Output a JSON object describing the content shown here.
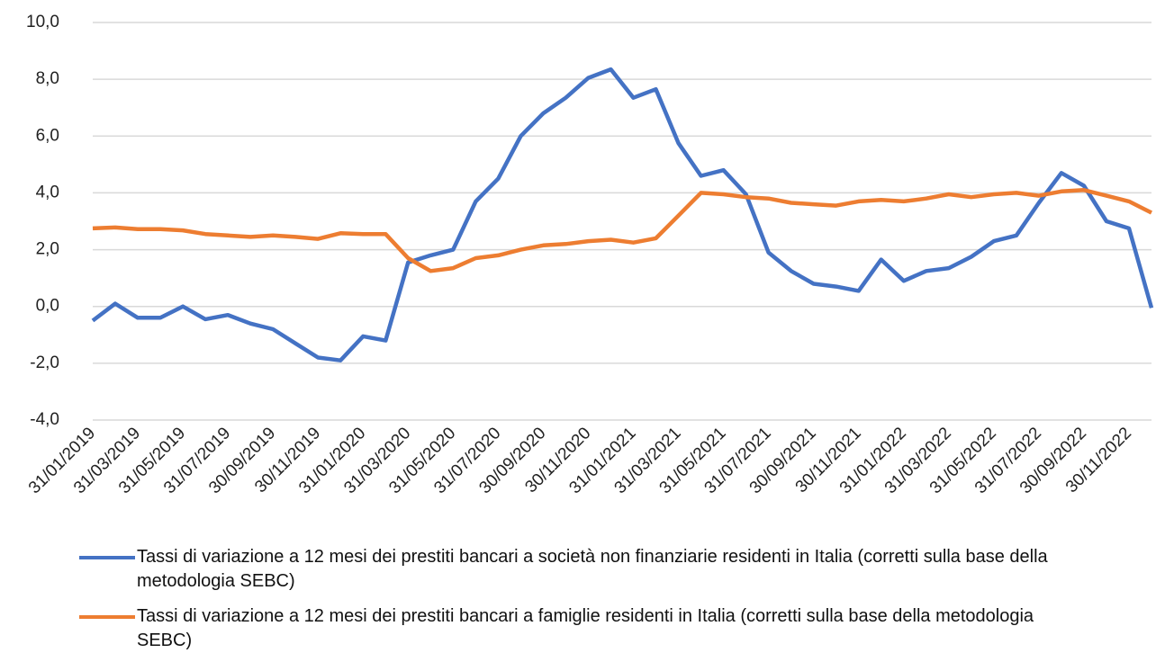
{
  "chart_data": {
    "type": "line",
    "categories": [
      "31/01/2019",
      null,
      "31/03/2019",
      null,
      "31/05/2019",
      null,
      "31/07/2019",
      null,
      "30/09/2019",
      null,
      "30/11/2019",
      null,
      "31/01/2020",
      null,
      "31/03/2020",
      null,
      "31/05/2020",
      null,
      "31/07/2020",
      null,
      "30/09/2020",
      null,
      "30/11/2020",
      null,
      "31/01/2021",
      null,
      "31/03/2021",
      null,
      "31/05/2021",
      null,
      "31/07/2021",
      null,
      "30/09/2021",
      null,
      "30/11/2021",
      null,
      "31/01/2022",
      null,
      "31/03/2022",
      null,
      "31/05/2022",
      null,
      "31/07/2022",
      null,
      "30/09/2022",
      null,
      "30/11/2022",
      null
    ],
    "series": [
      {
        "name": "Tassi di variazione a 12 mesi dei prestiti bancari a società non finanziarie residenti in Italia (corretti sulla base della metodologia SEBC)",
        "color": "#4472c4",
        "values": [
          -0.5,
          0.1,
          -0.4,
          -0.4,
          0.0,
          -0.45,
          -0.3,
          -0.6,
          -0.8,
          -1.3,
          -1.8,
          -1.9,
          -1.05,
          -1.2,
          1.55,
          1.8,
          2.0,
          3.7,
          4.5,
          6.0,
          6.8,
          7.35,
          8.05,
          8.35,
          7.35,
          7.65,
          5.75,
          4.6,
          4.8,
          3.95,
          1.9,
          1.25,
          0.8,
          0.7,
          0.55,
          1.65,
          0.9,
          1.25,
          1.35,
          1.75,
          2.3,
          2.5,
          3.65,
          4.7,
          4.25,
          3.0,
          2.75,
          -0.05
        ]
      },
      {
        "name": "Tassi di variazione a 12 mesi dei prestiti bancari a famiglie residenti in Italia (corretti sulla base della metodologia SEBC)",
        "color": "#ed7d31",
        "values": [
          2.75,
          2.78,
          2.72,
          2.72,
          2.68,
          2.55,
          2.5,
          2.45,
          2.5,
          2.45,
          2.38,
          2.58,
          2.55,
          2.55,
          1.7,
          1.25,
          1.35,
          1.7,
          1.8,
          2.0,
          2.15,
          2.2,
          2.3,
          2.35,
          2.25,
          2.4,
          3.2,
          4.0,
          3.95,
          3.85,
          3.8,
          3.65,
          3.6,
          3.55,
          3.7,
          3.75,
          3.7,
          3.8,
          3.95,
          3.85,
          3.95,
          4.0,
          3.9,
          4.05,
          4.1,
          3.9,
          3.7,
          3.3
        ]
      }
    ],
    "ylim": [
      -4,
      10
    ],
    "yticks": [
      {
        "value": -4,
        "label": "-4,0"
      },
      {
        "value": -2,
        "label": "-2,0"
      },
      {
        "value": 0,
        "label": "0,0"
      },
      {
        "value": 2,
        "label": "2,0"
      },
      {
        "value": 4,
        "label": "4,0"
      },
      {
        "value": 6,
        "label": "6,0"
      },
      {
        "value": 8,
        "label": "8,0"
      },
      {
        "value": 10,
        "label": "10,0"
      }
    ],
    "grid": true,
    "legend": "bottom"
  }
}
